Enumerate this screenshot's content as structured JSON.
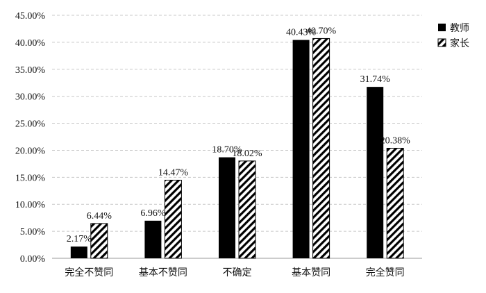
{
  "chart_data": {
    "type": "bar",
    "categories": [
      "完全不赞同",
      "基本不赞同",
      "不确定",
      "基本赞同",
      "完全赞同"
    ],
    "series": [
      {
        "name": "教师",
        "values": [
          2.17,
          6.96,
          18.7,
          40.43,
          31.74
        ],
        "labels": [
          "2.17%",
          "6.96%",
          "18.70%",
          "40.43%",
          "31.74%"
        ],
        "fill": "solid",
        "color": "#000000"
      },
      {
        "name": "家长",
        "values": [
          6.44,
          14.47,
          18.02,
          40.7,
          20.38
        ],
        "labels": [
          "6.44%",
          "14.47%",
          "18.02%",
          "40.70%",
          "20.38%"
        ],
        "fill": "diagonal-hatch",
        "color": "#000000"
      }
    ],
    "ylim": [
      0,
      45
    ],
    "yticks": [
      "0.00%",
      "5.00%",
      "10.00%",
      "15.00%",
      "20.00%",
      "25.00%",
      "30.00%",
      "35.00%",
      "40.00%",
      "45.00%"
    ],
    "grid": "horizontal dashed",
    "legend": "right",
    "title": "",
    "xlabel": "",
    "ylabel": ""
  }
}
